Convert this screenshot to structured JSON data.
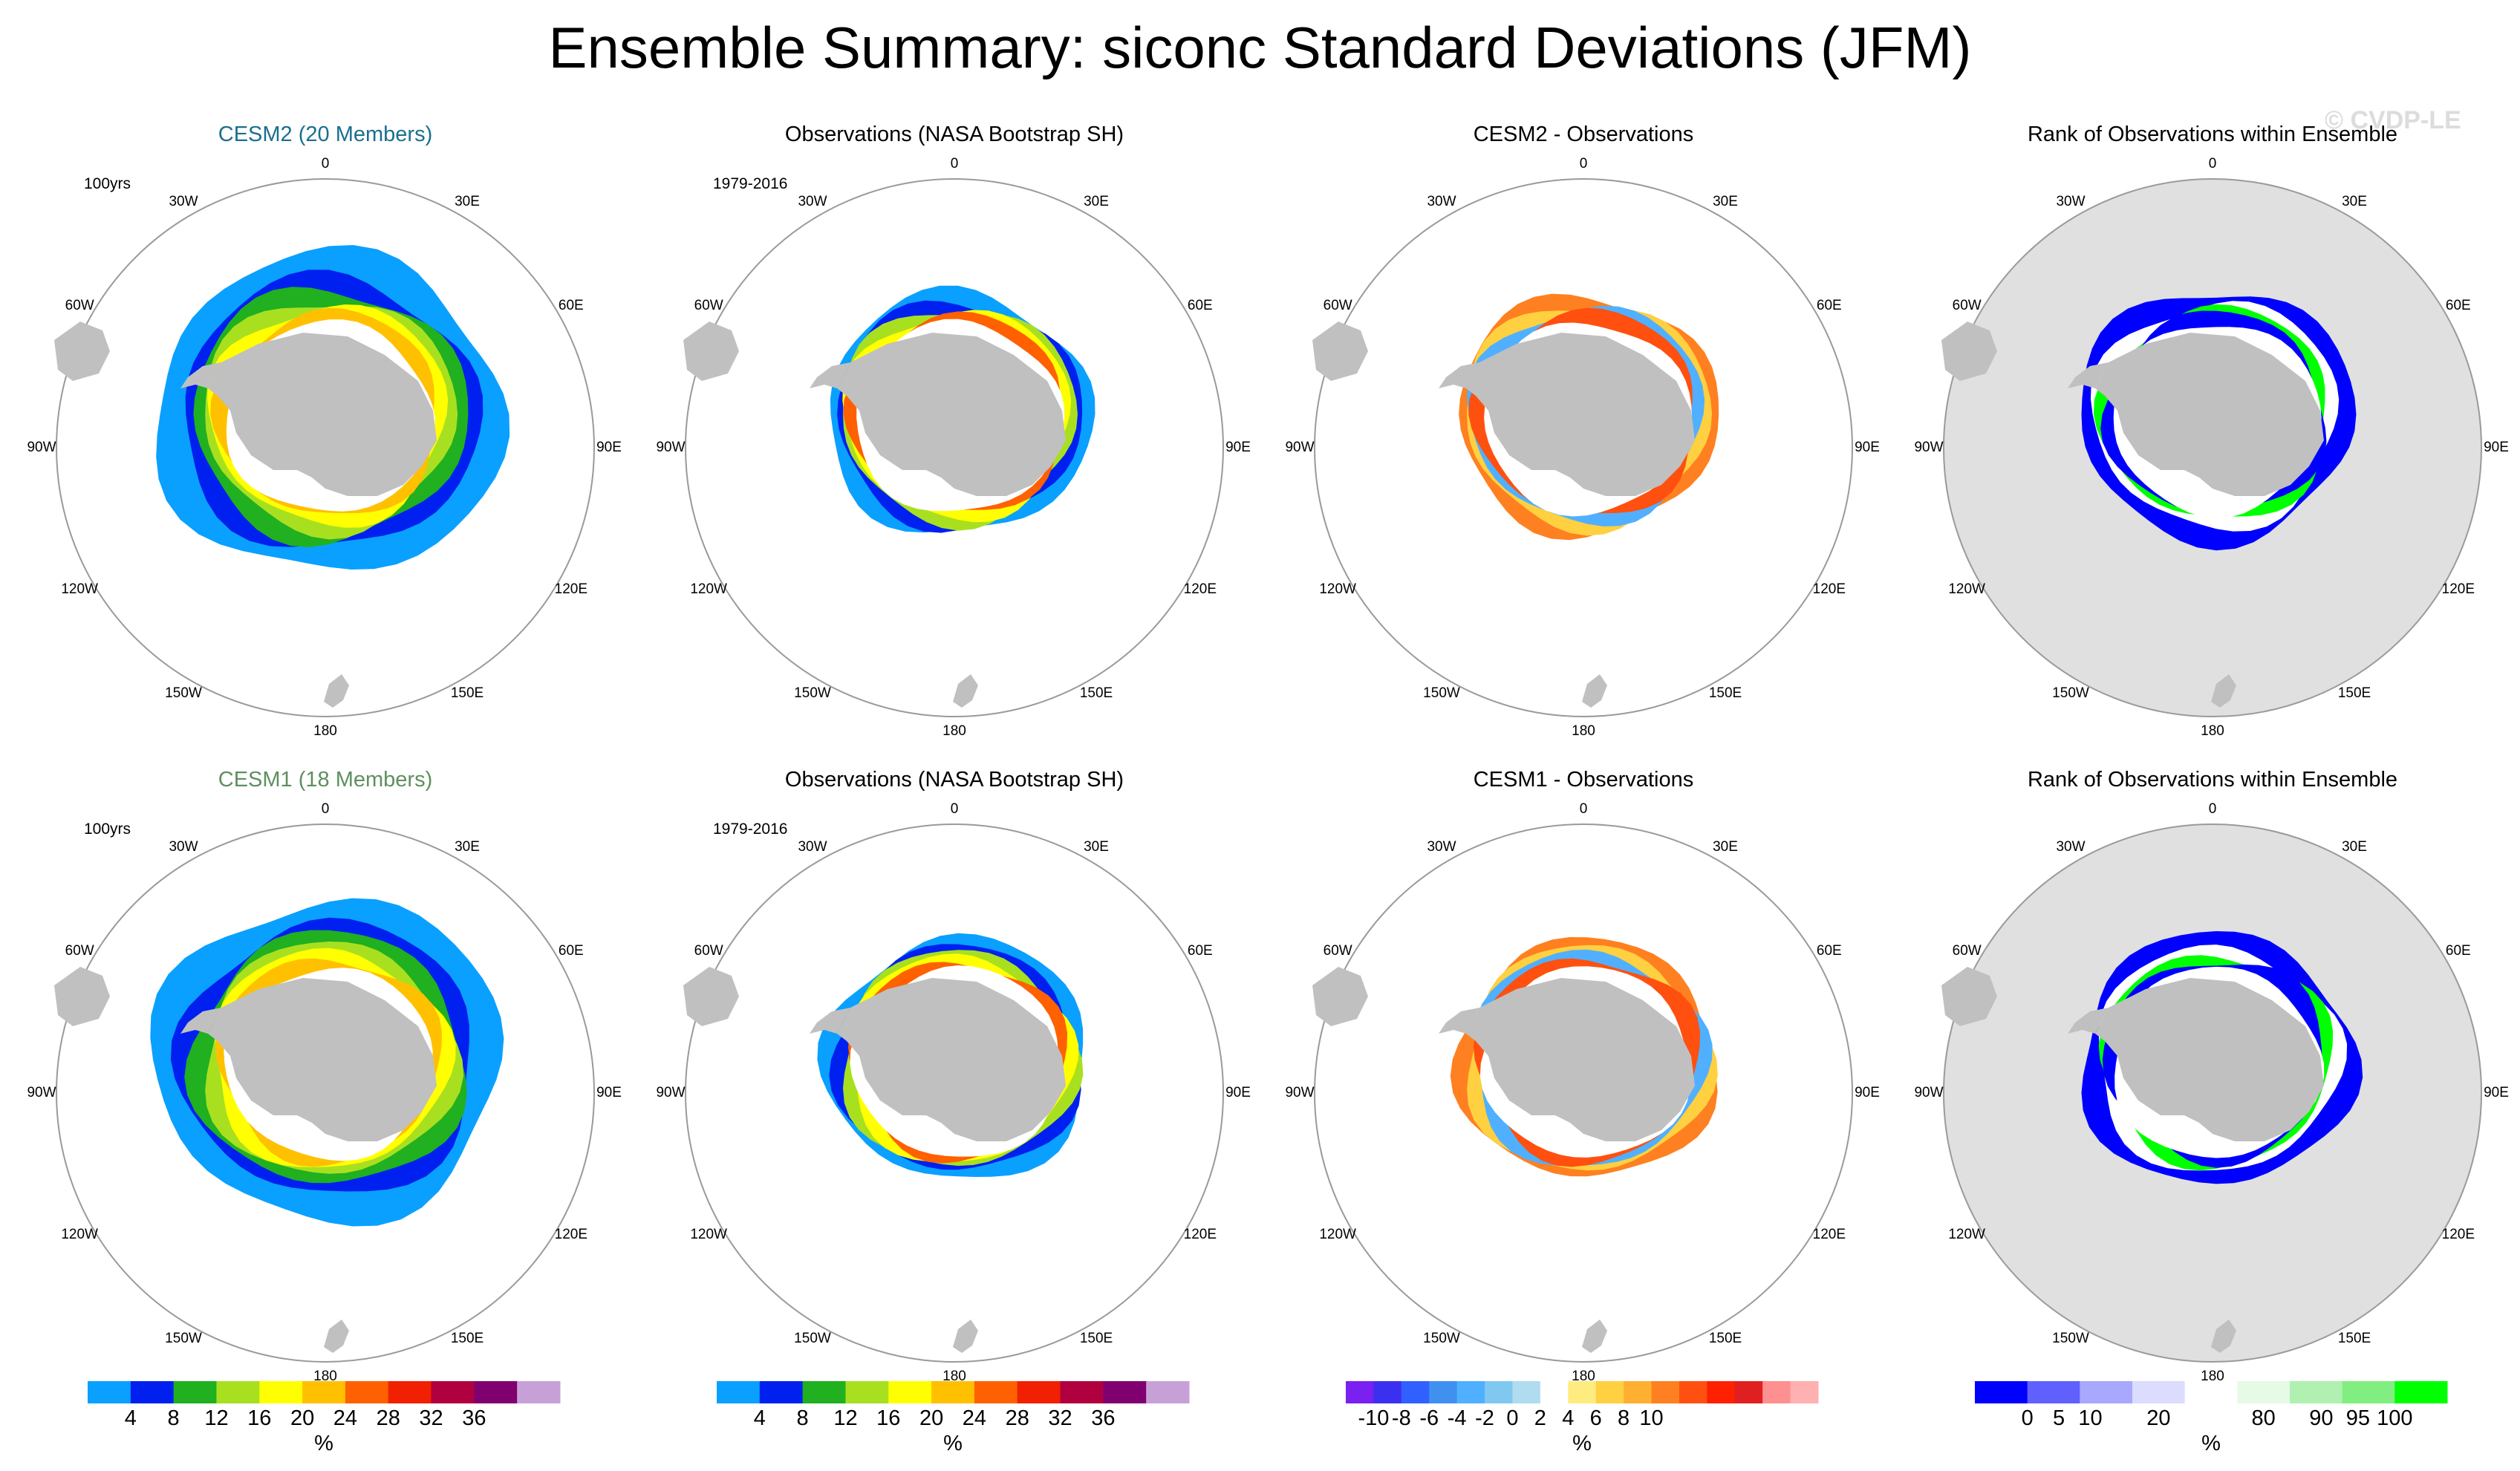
{
  "title": "Ensemble Summary: siconc Standard Deviations (JFM)",
  "watermark": "© CVDP-LE",
  "longitude_labels": [
    "0",
    "30E",
    "60E",
    "90E",
    "120E",
    "150E",
    "180",
    "150W",
    "120W",
    "90W",
    "60W",
    "30W"
  ],
  "colors": {
    "ocean_bg": "#ffffff",
    "land": "#c0c0c0",
    "missing": "#e0e0e0",
    "title_cesm2": "#1a6f8f",
    "title_cesm1": "#5f8f5f",
    "map_border": "#9a9a9a"
  },
  "colorbars": {
    "sd": {
      "colors": [
        "#0aa0ff",
        "#0020f0",
        "#20b020",
        "#a8e020",
        "#ffff00",
        "#ffc000",
        "#ff6000",
        "#f02000",
        "#b00040",
        "#800070",
        "#c8a0d8"
      ],
      "ticks": [
        "4",
        "8",
        "12",
        "16",
        "20",
        "24",
        "28",
        "32",
        "36"
      ],
      "unit": "%"
    },
    "diff": {
      "colors": [
        "#7a20f0",
        "#3c30f0",
        "#3060ff",
        "#4090f0",
        "#50b0ff",
        "#80c8f0",
        "#b0dcf0",
        "#ffffff",
        "#ffec80",
        "#ffd040",
        "#ffb030",
        "#ff8020",
        "#ff5010",
        "#ff2000",
        "#e02020",
        "#ff9090",
        "#ffb0b0"
      ],
      "ticks": [
        "-10",
        "-8",
        "-6",
        "-4",
        "-2",
        "0",
        "2",
        "4",
        "6",
        "8",
        "10"
      ],
      "unit": "%"
    },
    "rank": {
      "colors": [
        "#0000ff",
        "#6060ff",
        "#a8a8ff",
        "#dcdcff",
        "#ffffff",
        "#e6fae6",
        "#b0f0b0",
        "#80ee80",
        "#00ff00"
      ],
      "ticks": [
        "0",
        "5",
        "10",
        "20",
        "80",
        "90",
        "95",
        "100"
      ],
      "unit": "%"
    }
  },
  "chart_data": [
    {
      "type": "polar-map",
      "title": "CESM2 (20 Members)",
      "corner_label": "100yrs",
      "variable": "siconc standard deviation",
      "colorbar": "sd",
      "unit": "%"
    },
    {
      "type": "polar-map",
      "title": "Observations (NASA Bootstrap SH)",
      "corner_label": "1979-2016",
      "variable": "siconc standard deviation",
      "colorbar": "sd",
      "unit": "%"
    },
    {
      "type": "polar-map",
      "title": "CESM2 - Observations",
      "corner_label": "",
      "variable": "difference",
      "colorbar": "diff",
      "unit": "%"
    },
    {
      "type": "polar-map",
      "title": "Rank of Observations within Ensemble",
      "corner_label": "",
      "variable": "rank",
      "colorbar": "rank",
      "unit": "%"
    },
    {
      "type": "polar-map",
      "title": "CESM1 (18 Members)",
      "corner_label": "100yrs",
      "variable": "siconc standard deviation",
      "colorbar": "sd",
      "unit": "%"
    },
    {
      "type": "polar-map",
      "title": "Observations (NASA Bootstrap SH)",
      "corner_label": "1979-2016",
      "variable": "siconc standard deviation",
      "colorbar": "sd",
      "unit": "%"
    },
    {
      "type": "polar-map",
      "title": "CESM1 - Observations",
      "corner_label": "",
      "variable": "difference",
      "colorbar": "diff",
      "unit": "%"
    },
    {
      "type": "polar-map",
      "title": "Rank of Observations within Ensemble",
      "corner_label": "",
      "variable": "rank",
      "colorbar": "rank",
      "unit": "%"
    }
  ]
}
